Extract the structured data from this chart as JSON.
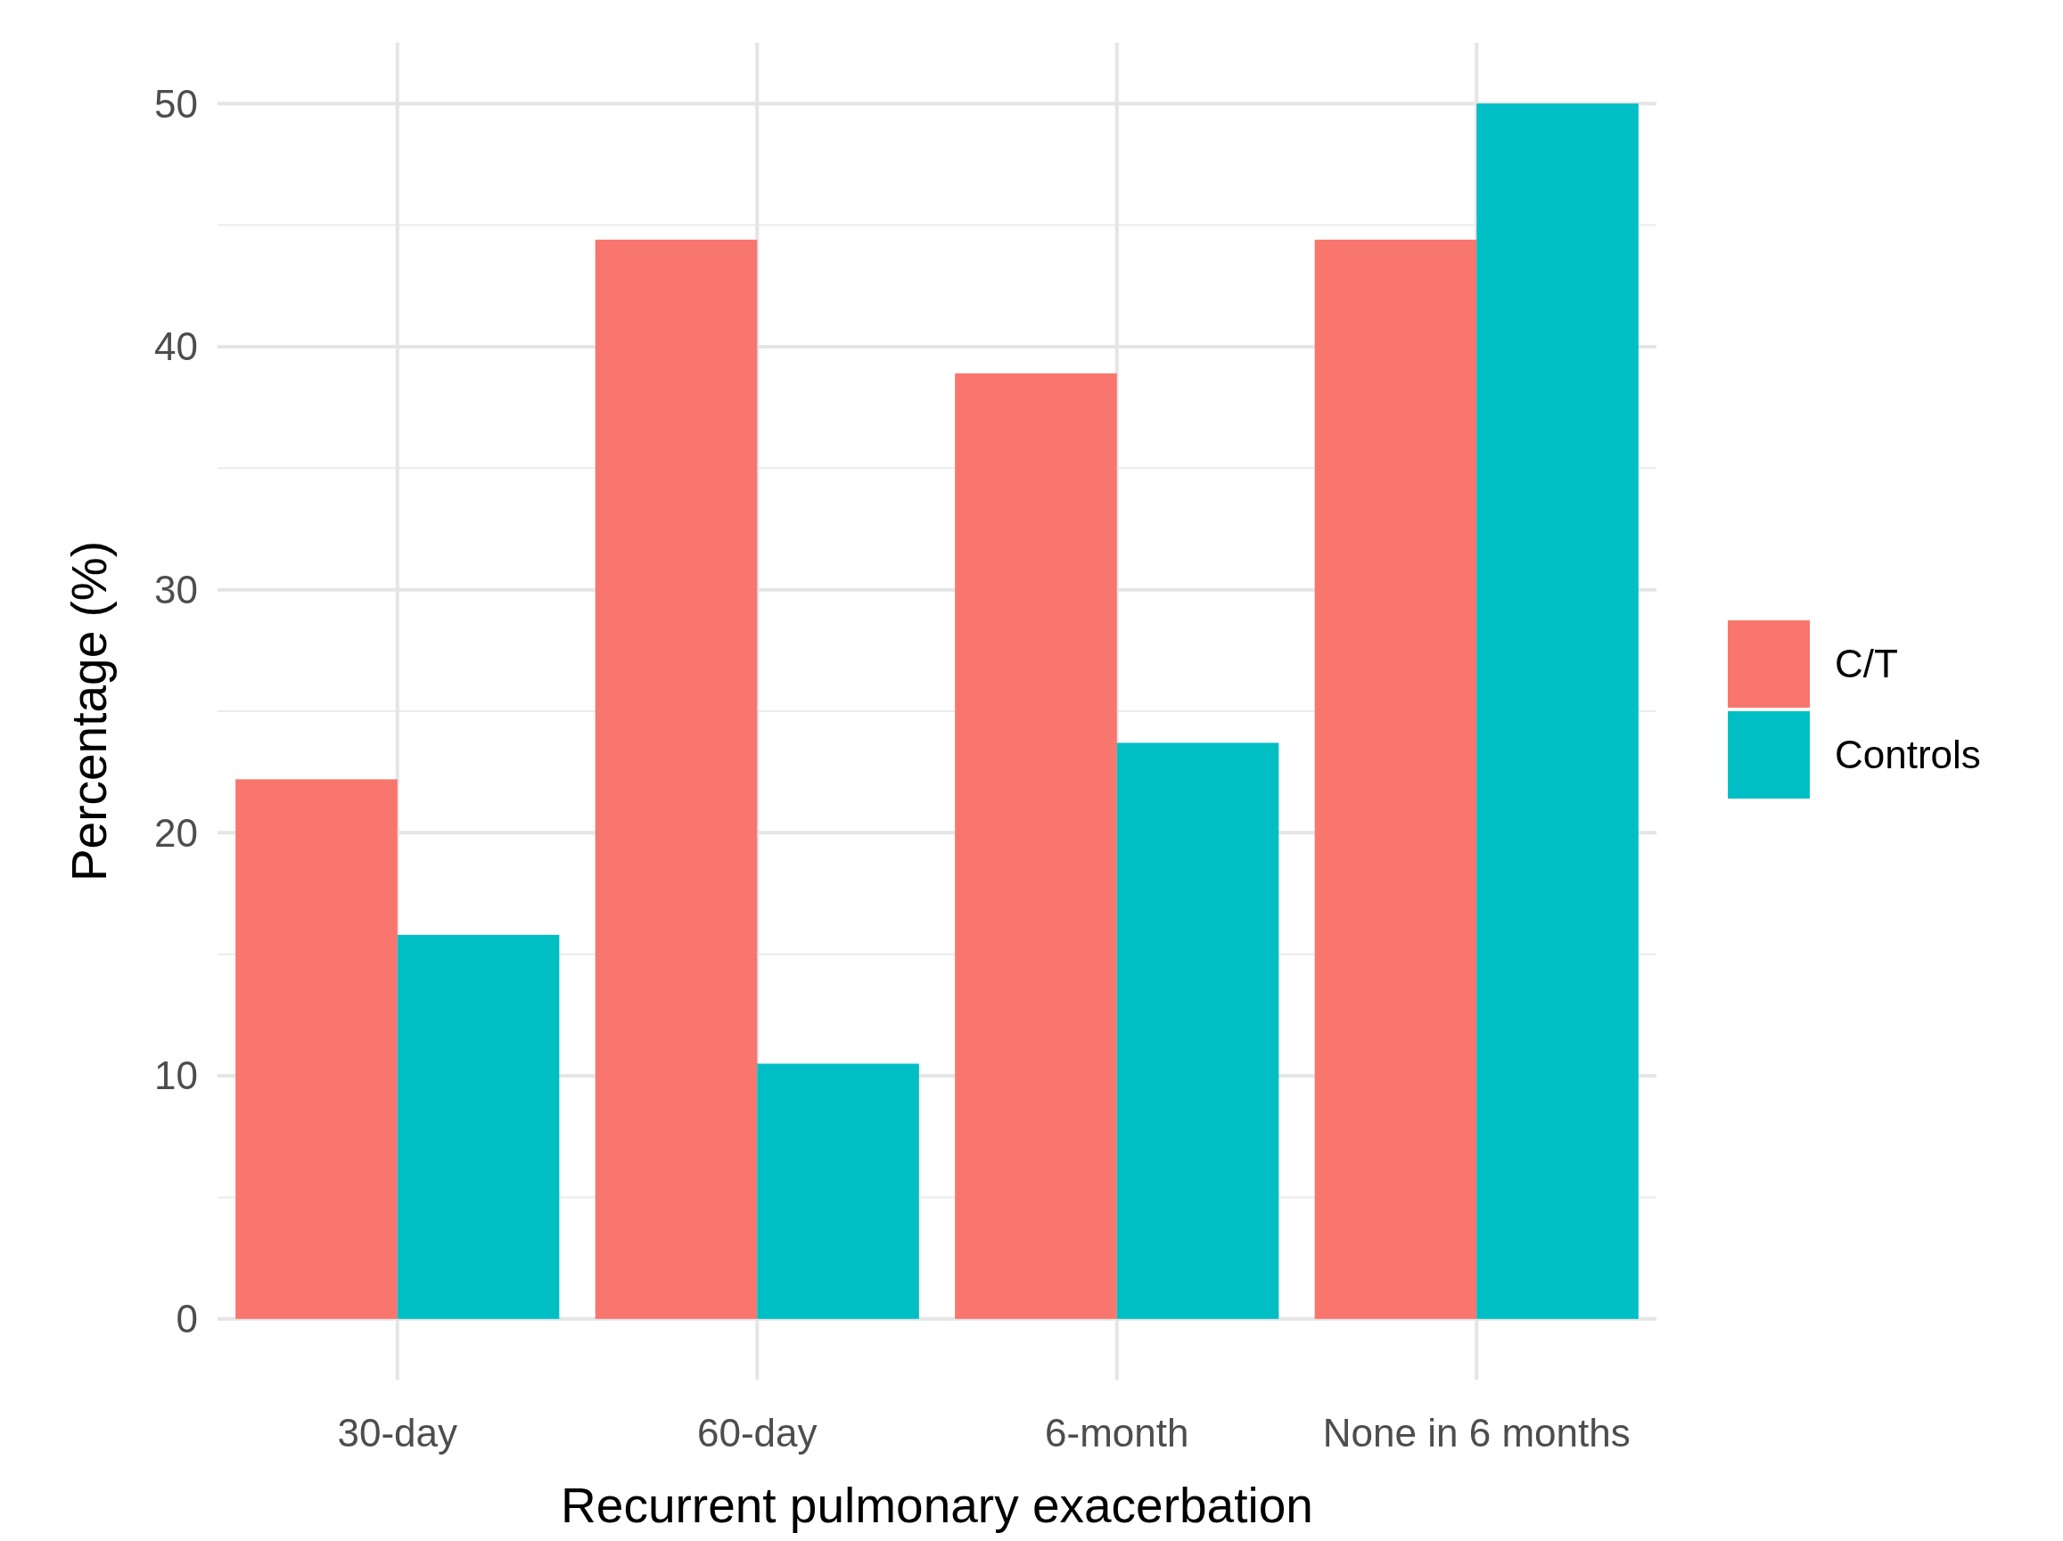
{
  "chart_data": {
    "type": "bar",
    "xlabel": "Recurrent pulmonary exacerbation",
    "ylabel": "Percentage (%)",
    "categories": [
      "30-day",
      "60-day",
      "6-month",
      "None in 6 months"
    ],
    "series": [
      {
        "name": "C/T",
        "color": "#f8766d",
        "values": [
          22.2,
          44.4,
          38.9,
          44.4
        ]
      },
      {
        "name": "Controls",
        "color": "#00bfc4",
        "values": [
          15.8,
          10.5,
          23.7,
          50
        ]
      }
    ],
    "ylim": [
      -2.5,
      52.5
    ],
    "yticks": [
      0,
      10,
      20,
      30,
      40,
      50
    ],
    "grid": true,
    "legend": "right"
  }
}
